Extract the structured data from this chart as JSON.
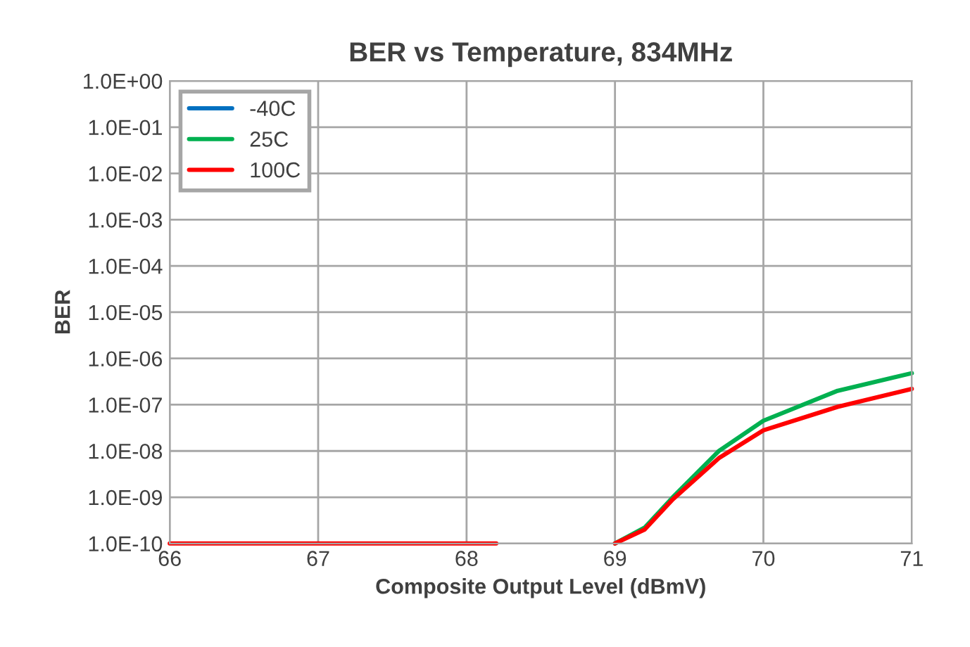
{
  "chart_data": {
    "type": "line",
    "title": "BER vs Temperature, 834MHz",
    "xlabel": "Composite Output Level (dBmV)",
    "ylabel": "BER",
    "x": [
      66,
      67,
      68,
      68.2,
      68.3,
      69,
      69.2,
      69.39,
      69.7,
      70,
      70.5,
      71
    ],
    "series": [
      {
        "name": "-40C",
        "color": "#0070c0",
        "values": [
          null,
          null,
          null,
          null,
          null,
          null,
          null,
          null,
          null,
          null,
          null,
          null
        ]
      },
      {
        "name": "25C",
        "color": "#00b050",
        "values": [
          null,
          null,
          null,
          null,
          null,
          1e-10,
          2.2e-10,
          1e-09,
          1e-08,
          4.5e-08,
          2e-07,
          4.8e-07
        ]
      },
      {
        "name": "100C",
        "color": "#ff0000",
        "values": [
          1e-10,
          1e-10,
          1e-10,
          1e-10,
          null,
          1e-10,
          2e-10,
          9e-10,
          7e-09,
          2.8e-08,
          9e-08,
          2.2e-07
        ]
      }
    ],
    "log": "y",
    "xlim": [
      66,
      71
    ],
    "ylim": [
      1e-10,
      1
    ],
    "xticks": [
      66,
      67,
      68,
      69,
      70,
      71
    ],
    "yticks": [
      {
        "value": 1e-10,
        "label": "1.0E-10"
      },
      {
        "value": 1e-09,
        "label": "1.0E-09"
      },
      {
        "value": 1e-08,
        "label": "1.0E-08"
      },
      {
        "value": 1e-07,
        "label": "1.0E-07"
      },
      {
        "value": 1e-06,
        "label": "1.0E-06"
      },
      {
        "value": 1e-05,
        "label": "1.0E-05"
      },
      {
        "value": 0.0001,
        "label": "1.0E-04"
      },
      {
        "value": 0.001,
        "label": "1.0E-03"
      },
      {
        "value": 0.01,
        "label": "1.0E-02"
      },
      {
        "value": 0.1,
        "label": "1.0E-01"
      },
      {
        "value": 1,
        "label": "1.0E+00"
      }
    ],
    "grid": true,
    "legend": "top left",
    "marker": "none",
    "line_style": "solid"
  }
}
